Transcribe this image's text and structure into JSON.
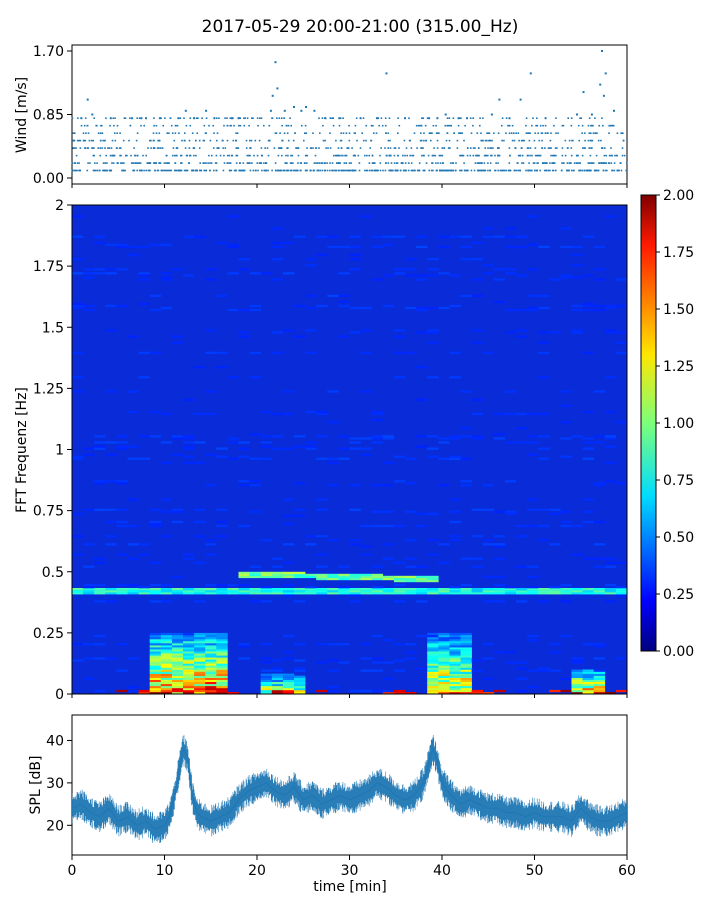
{
  "title": "2017-05-29 20:00-21:00 (315.00_Hz)",
  "colors": {
    "series": "#1f77b4",
    "colormap": "jet"
  },
  "chart_data": [
    {
      "type": "scatter",
      "name": "wind",
      "ylabel": "Wind [m/s]",
      "xlabel": "",
      "xlim": [
        0,
        60
      ],
      "ylim": [
        0,
        1.7
      ],
      "yticks": [
        0.0,
        0.85,
        1.7
      ],
      "ytick_labels": [
        "0.00",
        "0.85",
        "1.70"
      ],
      "marker": "dot",
      "grid": false,
      "levels": [
        0.1,
        0.2,
        0.3,
        0.4,
        0.5,
        0.6,
        0.7,
        0.8
      ],
      "x": [
        1.0,
        1.7,
        2.2,
        4.2,
        6.5,
        7.5,
        8.0,
        9.5,
        11.5,
        12.3,
        13.2,
        14.5,
        15.4,
        17.3,
        18.0,
        21.5,
        21.7,
        22.0,
        22.2,
        23.0,
        24.0,
        24.8,
        25.3,
        26.2,
        27.4,
        28.9,
        31.2,
        33.0,
        34.0,
        36.0,
        38.6,
        39.5,
        40.4,
        41.8,
        42.7,
        45.4,
        46.2,
        47.3,
        48.5,
        49.6,
        51.2,
        54.6,
        55.3,
        56.2,
        57.1,
        57.3,
        57.5,
        57.7,
        58.6
      ],
      "y": [
        0.8,
        1.05,
        0.85,
        0.8,
        0.8,
        0.8,
        0.8,
        0.8,
        0.8,
        0.9,
        0.8,
        0.9,
        0.8,
        0.8,
        0.8,
        0.9,
        1.1,
        1.55,
        1.2,
        0.9,
        0.95,
        0.9,
        0.95,
        0.9,
        0.8,
        0.8,
        0.8,
        0.8,
        1.4,
        0.8,
        0.8,
        0.8,
        0.85,
        0.8,
        0.8,
        0.85,
        1.05,
        0.8,
        1.05,
        1.4,
        0.8,
        0.85,
        1.15,
        0.85,
        1.25,
        1.7,
        1.1,
        1.4,
        0.9
      ]
    },
    {
      "type": "heatmap",
      "name": "spectrogram",
      "ylabel": "FFT Frequenz [Hz]",
      "xlabel": "",
      "xlim": [
        0,
        60
      ],
      "ylim": [
        0,
        2
      ],
      "yticks": [
        0,
        0.25,
        0.5,
        0.75,
        1,
        1.25,
        1.5,
        1.75,
        2
      ],
      "ytick_labels": [
        "0",
        "0.25",
        "0.5",
        "0.75",
        "1",
        "1.25",
        "1.5",
        "1.75",
        "2"
      ],
      "colorbar": {
        "colormap": "jet",
        "range": [
          0,
          2.0
        ],
        "ticks": [
          0.0,
          0.25,
          0.5,
          0.75,
          1.0,
          1.25,
          1.5,
          1.75,
          2.0
        ],
        "tick_labels": [
          "0.00",
          "0.25",
          "0.50",
          "0.75",
          "1.00",
          "1.25",
          "1.50",
          "1.75",
          "2.00"
        ]
      },
      "background_level": 0.2,
      "features": [
        {
          "label": "hum line",
          "from": [
            0,
            0.42
          ],
          "to": [
            60,
            0.42
          ],
          "value": 0.8
        },
        {
          "label": "hum line 2",
          "from": [
            18,
            0.49
          ],
          "to": [
            40,
            0.47
          ],
          "value": 0.95
        },
        {
          "label": "wind burst low band",
          "x": [
            9,
            17
          ],
          "y": [
            0,
            0.25
          ],
          "value": 1.4
        },
        {
          "label": "wind burst low band",
          "x": [
            20,
            25
          ],
          "y": [
            0,
            0.08
          ],
          "value": 1.1
        },
        {
          "label": "wind burst low band",
          "x": [
            38,
            43
          ],
          "y": [
            0,
            0.25
          ],
          "value": 1.2
        },
        {
          "label": "wind burst low band",
          "x": [
            54.5,
            57.5
          ],
          "y": [
            0,
            0.1
          ],
          "value": 1.3
        }
      ]
    },
    {
      "type": "line",
      "name": "spl",
      "ylabel": "SPL [dB]",
      "xlabel": "time [min]",
      "xlim": [
        0,
        60
      ],
      "ylim": [
        13,
        46
      ],
      "yticks": [
        20,
        30,
        40
      ],
      "ytick_labels": [
        "20",
        "30",
        "40"
      ],
      "xticks": [
        0,
        10,
        20,
        30,
        40,
        50,
        60
      ],
      "xtick_labels": [
        "0",
        "10",
        "20",
        "30",
        "40",
        "50",
        "60"
      ],
      "grid": false,
      "x": [
        0,
        1,
        2,
        3,
        4,
        5,
        6,
        7,
        8,
        9,
        10,
        10.5,
        11,
        11.5,
        12,
        12.5,
        13,
        13.5,
        14,
        15,
        16,
        17,
        18,
        19,
        20,
        21,
        22,
        23,
        24,
        25,
        26,
        27,
        28,
        29,
        30,
        31,
        32,
        33,
        34,
        35,
        36,
        37,
        38,
        38.5,
        39,
        39.5,
        40,
        41,
        42,
        43,
        44,
        45,
        46,
        47,
        48,
        49,
        50,
        51,
        52,
        53,
        54,
        55,
        56,
        57,
        58,
        59,
        60
      ],
      "y": [
        24,
        25,
        23,
        22,
        24,
        21,
        22,
        20,
        21,
        19,
        20,
        22,
        26,
        32,
        38,
        36,
        27,
        23,
        22,
        21,
        22,
        23,
        26,
        28,
        29,
        30,
        28,
        27,
        29,
        26,
        27,
        25,
        26,
        27,
        26,
        27,
        28,
        30,
        29,
        27,
        26,
        27,
        30,
        34,
        38,
        35,
        30,
        27,
        25,
        26,
        25,
        24,
        24,
        23,
        23,
        22,
        23,
        22,
        22,
        22,
        21,
        24,
        22,
        21,
        21,
        22,
        23
      ],
      "band": 2.5
    }
  ]
}
